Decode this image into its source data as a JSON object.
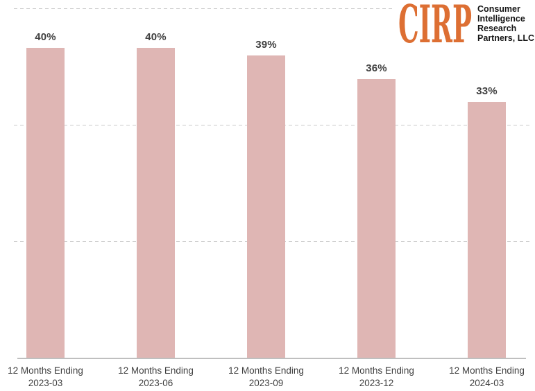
{
  "logo": {
    "brand": "CIRP",
    "brand_color": "#DD6F33",
    "org_lines": [
      "Consumer",
      "Intelligence",
      "Research",
      "Partners, LLC"
    ]
  },
  "chart_data": {
    "type": "bar",
    "categories": [
      [
        "12 Months Ending",
        "2023-03"
      ],
      [
        "12 Months Ending",
        "2023-06"
      ],
      [
        "12 Months Ending",
        "2023-09"
      ],
      [
        "12 Months Ending",
        "2023-12"
      ],
      [
        "12 Months Ending",
        "2024-03"
      ]
    ],
    "values": [
      40,
      40,
      39,
      36,
      33
    ],
    "data_labels": [
      "40%",
      "40%",
      "39%",
      "36%",
      "33%"
    ],
    "ylim": [
      0,
      45
    ],
    "gridline_values": [
      15,
      30,
      45
    ],
    "grid": "dashed-horizontal",
    "legend": "none",
    "xlabel": "",
    "ylabel": "",
    "bar_color": "#DFB6B4",
    "label_color": "#404040",
    "gridline_color": "#C9C9C9",
    "axis_line_color": "#BFBFBF"
  }
}
